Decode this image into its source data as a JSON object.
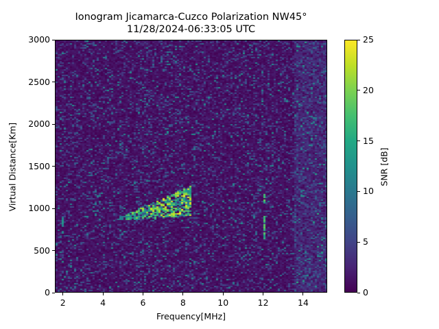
{
  "chart_data": {
    "type": "heatmap",
    "title": "Ionogram Jicamarca-Cuzco Polarization NW45°",
    "subtitle": "11/28/2024-06:33:05 UTC",
    "xlabel": "Frequency[MHz]",
    "ylabel": "Virtual Distance[Km]",
    "xlim": [
      1.6,
      15.2
    ],
    "ylim": [
      0,
      3000
    ],
    "xticks": [
      2,
      4,
      6,
      8,
      10,
      12,
      14
    ],
    "yticks": [
      0,
      500,
      1000,
      1500,
      2000,
      2500,
      3000
    ],
    "colorbar": {
      "label": "SNR [dB]",
      "range": [
        0,
        25
      ],
      "ticks": [
        0,
        5,
        10,
        15,
        20,
        25
      ],
      "colormap": "viridis"
    },
    "grid": false,
    "features": [
      {
        "name": "ionospheric echo trace",
        "freq_range_mhz": [
          4.7,
          8.4
        ],
        "distance_range_km": [
          850,
          1280
        ],
        "peak_snr_db": 25,
        "shape": "rising diagonal band"
      },
      {
        "name": "narrowband interference line",
        "freq_mhz": 12.0,
        "distance_range_km": [
          620,
          1180
        ],
        "snr_db": 18
      },
      {
        "name": "weak vertical streak",
        "freq_mhz": 1.9,
        "distance_range_km": [
          700,
          900
        ],
        "snr_db": 12
      }
    ],
    "background_noise_snr_db": [
      0,
      8
    ]
  },
  "labels": {
    "title_line1": "Ionogram Jicamarca-Cuzco Polarization NW45°",
    "title_line2": "11/28/2024-06:33:05 UTC",
    "x_axis": "Frequency[MHz]",
    "y_axis": "Virtual Distance[Km]",
    "colorbar": "SNR [dB]",
    "xticks": [
      "2",
      "4",
      "6",
      "8",
      "10",
      "12",
      "14"
    ],
    "yticks": [
      "0",
      "500",
      "1000",
      "1500",
      "2000",
      "2500",
      "3000"
    ],
    "cticks": [
      "0",
      "5",
      "10",
      "15",
      "20",
      "25"
    ]
  }
}
